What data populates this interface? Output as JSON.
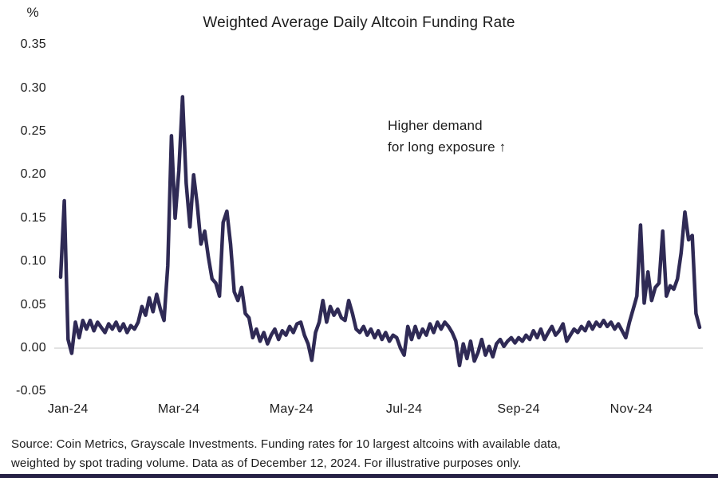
{
  "theme": {
    "background": "#ffffff",
    "line_color": "#2f2a55",
    "zero_line_color": "#d9d9d9",
    "brand_bar_color": "#262145",
    "text_color": "#1c1c1c"
  },
  "header": {
    "title": "Weighted Average Daily Altcoin Funding Rate",
    "unit_label": "%"
  },
  "annotation": {
    "line1": "Higher demand",
    "line2": "for long exposure ↑"
  },
  "footer": {
    "line1": "Source: Coin Metrics, Grayscale Investments. Funding rates for 10 largest altcoins with available data,",
    "line2": "weighted by spot trading volume. Data as of December 12, 2024. For illustrative purposes only."
  },
  "chart_data": {
    "type": "line",
    "title": "Weighted Average Daily Altcoin Funding Rate",
    "xlabel": "",
    "ylabel": "%",
    "x_range": [
      "Jan-24",
      "Dec 12, 2024"
    ],
    "x_tick_labels": [
      "Jan-24",
      "Mar-24",
      "May-24",
      "Jul-24",
      "Sep-24",
      "Nov-24"
    ],
    "x_tick_days": [
      4,
      64,
      125,
      186,
      248,
      309
    ],
    "y_ticks": [
      0.35,
      0.3,
      0.25,
      0.2,
      0.15,
      0.1,
      0.05,
      0.0,
      -0.05
    ],
    "ylim": [
      -0.075,
      0.37
    ],
    "grid": "zero-line-only",
    "legend": "none",
    "annotation": "Higher demand for long exposure ↑",
    "series": [
      {
        "name": "Weighted average daily altcoin funding rate (%)",
        "color": "#2f2a55",
        "days_span": 346,
        "values": [
          0.082,
          0.17,
          0.01,
          -0.006,
          0.03,
          0.012,
          0.032,
          0.022,
          0.032,
          0.02,
          0.03,
          0.024,
          0.018,
          0.028,
          0.022,
          0.03,
          0.02,
          0.028,
          0.018,
          0.026,
          0.022,
          0.03,
          0.048,
          0.038,
          0.058,
          0.042,
          0.062,
          0.045,
          0.032,
          0.095,
          0.245,
          0.15,
          0.205,
          0.29,
          0.19,
          0.14,
          0.2,
          0.165,
          0.12,
          0.135,
          0.105,
          0.08,
          0.075,
          0.06,
          0.145,
          0.158,
          0.12,
          0.065,
          0.055,
          0.07,
          0.04,
          0.035,
          0.012,
          0.022,
          0.008,
          0.018,
          0.005,
          0.015,
          0.022,
          0.01,
          0.02,
          0.015,
          0.025,
          0.018,
          0.028,
          0.03,
          0.015,
          0.005,
          -0.014,
          0.018,
          0.03,
          0.055,
          0.03,
          0.048,
          0.038,
          0.045,
          0.035,
          0.032,
          0.055,
          0.04,
          0.022,
          0.018,
          0.025,
          0.015,
          0.022,
          0.012,
          0.02,
          0.01,
          0.018,
          0.008,
          0.015,
          0.012,
          0.0,
          -0.008,
          0.025,
          0.01,
          0.025,
          0.012,
          0.022,
          0.015,
          0.028,
          0.018,
          0.03,
          0.022,
          0.03,
          0.025,
          0.018,
          0.008,
          -0.02,
          0.005,
          -0.012,
          0.008,
          -0.015,
          -0.005,
          0.01,
          -0.008,
          0.002,
          -0.01,
          0.005,
          0.01,
          0.002,
          0.008,
          0.012,
          0.006,
          0.012,
          0.008,
          0.015,
          0.01,
          0.02,
          0.012,
          0.022,
          0.01,
          0.018,
          0.025,
          0.015,
          0.02,
          0.028,
          0.008,
          0.015,
          0.022,
          0.018,
          0.025,
          0.02,
          0.03,
          0.022,
          0.03,
          0.025,
          0.032,
          0.025,
          0.03,
          0.022,
          0.028,
          0.02,
          0.012,
          0.03,
          0.045,
          0.06,
          0.142,
          0.052,
          0.088,
          0.055,
          0.07,
          0.075,
          0.135,
          0.06,
          0.072,
          0.068,
          0.08,
          0.11,
          0.157,
          0.125,
          0.13,
          0.04,
          0.024
        ]
      }
    ]
  }
}
